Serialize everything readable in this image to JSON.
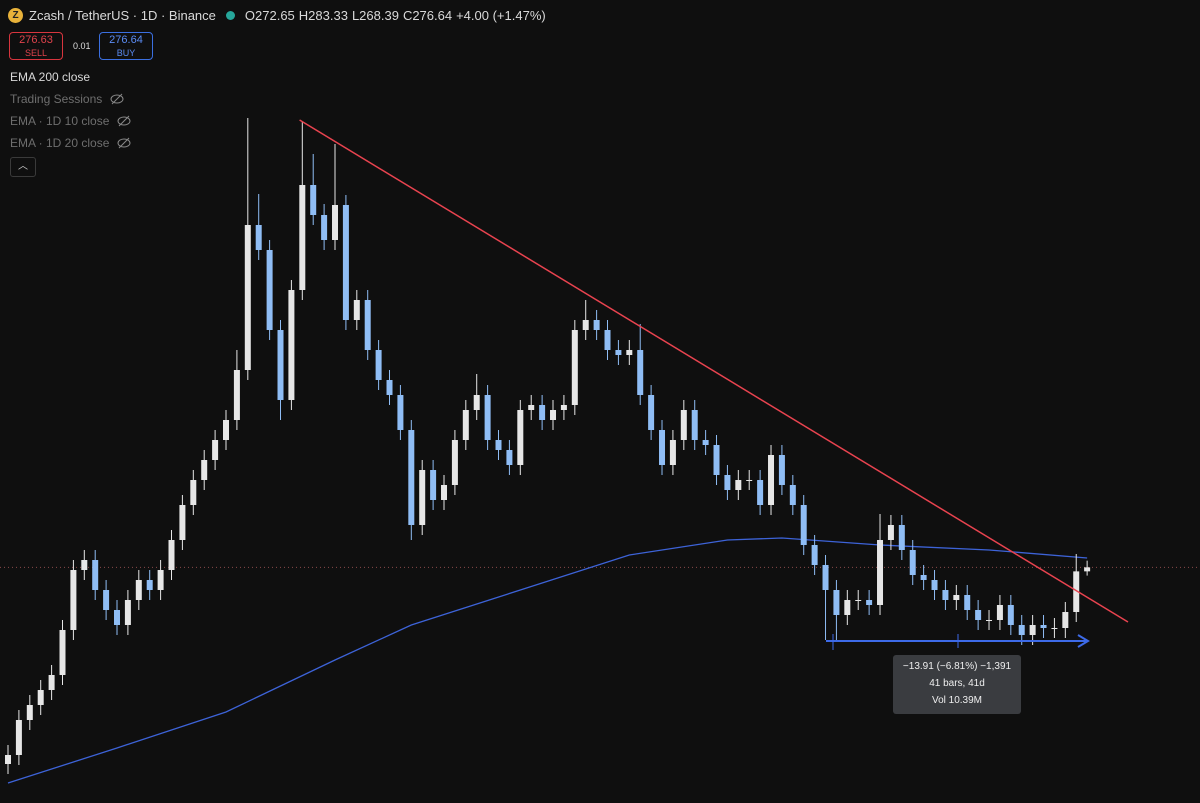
{
  "header": {
    "symbol": "Zcash / TetherUS · 1D · Binance",
    "logo": "Z",
    "open": "O272.65",
    "high": "H283.33",
    "low": "L268.39",
    "close": "C276.64",
    "change": "+4.00 (+1.47%)"
  },
  "trade": {
    "sell_price": "276.63",
    "sell": "SELL",
    "spread": "0.01",
    "buy_price": "276.64",
    "buy": "BUY"
  },
  "indicators": [
    "EMA 200 close",
    "Trading Sessions",
    "EMA · 1D 10 close",
    "EMA · 1D 20 close"
  ],
  "measure": {
    "line1": "−13.91 (−6.81%) −1,391",
    "line2": "41 bars, 41d",
    "line3": "Vol 10.39M"
  },
  "chart_data": {
    "type": "candlestick",
    "up_color": "#e6e6e6",
    "down_color": "#8fbdf5",
    "xlim": [
      0,
      102.75
    ],
    "ylim": [
      41,
      844
    ],
    "open": [
      80,
      89,
      124,
      139,
      154,
      169,
      214,
      274,
      284,
      254,
      234,
      219,
      244,
      264,
      254,
      274,
      304,
      339,
      364,
      384,
      404,
      424,
      474,
      619,
      594,
      514,
      444,
      554,
      659,
      629,
      604,
      639,
      524,
      544,
      494,
      464,
      449,
      414,
      319,
      374,
      344,
      359,
      404,
      434,
      449,
      404,
      394,
      379,
      434,
      439,
      424,
      434,
      439,
      514,
      524,
      514,
      494,
      489,
      494,
      449,
      414,
      379,
      404,
      434,
      404,
      399,
      369,
      354,
      364,
      364,
      339,
      389,
      359,
      339,
      299,
      279,
      254,
      229,
      244,
      244,
      239,
      304,
      319,
      294,
      269,
      264,
      254,
      244,
      249,
      234,
      224,
      224,
      239,
      219,
      209,
      219,
      216,
      216,
      232,
      272.65
    ],
    "high": [
      99,
      134,
      149,
      164,
      179,
      224,
      284,
      294,
      294,
      264,
      244,
      254,
      274,
      274,
      284,
      314,
      349,
      374,
      394,
      414,
      434,
      494,
      726,
      650,
      604,
      524,
      564,
      722,
      690,
      640,
      700,
      649,
      554,
      554,
      504,
      474,
      459,
      424,
      384,
      384,
      369,
      414,
      444,
      470,
      459,
      414,
      404,
      444,
      449,
      449,
      444,
      449,
      524,
      544,
      534,
      524,
      504,
      504,
      520,
      459,
      424,
      414,
      444,
      444,
      414,
      409,
      379,
      374,
      374,
      374,
      399,
      399,
      369,
      349,
      309,
      289,
      264,
      254,
      254,
      254,
      330,
      329,
      329,
      304,
      279,
      274,
      264,
      259,
      259,
      244,
      234,
      249,
      249,
      229,
      229,
      229,
      226,
      242,
      290,
      283.33
    ],
    "low": [
      70,
      79,
      114,
      129,
      144,
      159,
      204,
      264,
      244,
      224,
      209,
      209,
      234,
      244,
      244,
      264,
      294,
      329,
      354,
      374,
      394,
      414,
      464,
      584,
      504,
      424,
      434,
      544,
      619,
      594,
      594,
      514,
      514,
      484,
      454,
      439,
      404,
      304,
      309,
      334,
      334,
      349,
      394,
      424,
      394,
      384,
      369,
      369,
      424,
      414,
      414,
      424,
      429,
      504,
      504,
      484,
      479,
      479,
      439,
      404,
      369,
      369,
      394,
      394,
      389,
      359,
      344,
      344,
      354,
      329,
      329,
      349,
      329,
      289,
      269,
      204,
      204,
      219,
      234,
      229,
      229,
      294,
      284,
      259,
      254,
      244,
      234,
      234,
      224,
      214,
      214,
      214,
      209,
      199,
      199,
      206,
      206,
      206,
      222,
      268.39
    ],
    "close": [
      89,
      124,
      139,
      154,
      169,
      214,
      274,
      284,
      254,
      234,
      219,
      244,
      264,
      254,
      274,
      304,
      339,
      364,
      384,
      404,
      424,
      474,
      619,
      594,
      514,
      444,
      554,
      659,
      629,
      604,
      639,
      524,
      544,
      494,
      464,
      449,
      414,
      319,
      374,
      344,
      359,
      404,
      434,
      449,
      404,
      394,
      379,
      434,
      439,
      424,
      434,
      439,
      514,
      524,
      514,
      494,
      489,
      494,
      449,
      414,
      379,
      404,
      434,
      404,
      399,
      369,
      354,
      364,
      364,
      339,
      389,
      359,
      339,
      299,
      279,
      254,
      229,
      244,
      244,
      239,
      304,
      319,
      294,
      269,
      264,
      254,
      244,
      249,
      234,
      224,
      224,
      239,
      219,
      209,
      219,
      216,
      216,
      232,
      272.64,
      276.64
    ],
    "ema": {
      "color": "#3d63d8",
      "x": [
        0,
        10,
        20,
        30,
        37,
        47,
        57,
        66,
        71,
        80,
        90,
        99
      ],
      "values": [
        61,
        96,
        132,
        184,
        219,
        254,
        289,
        304,
        306,
        299,
        294,
        286
      ]
    },
    "trendline": {
      "color": "#e8434f",
      "x": [
        26.75,
        102.75
      ],
      "values": [
        724,
        222
      ]
    }
  }
}
